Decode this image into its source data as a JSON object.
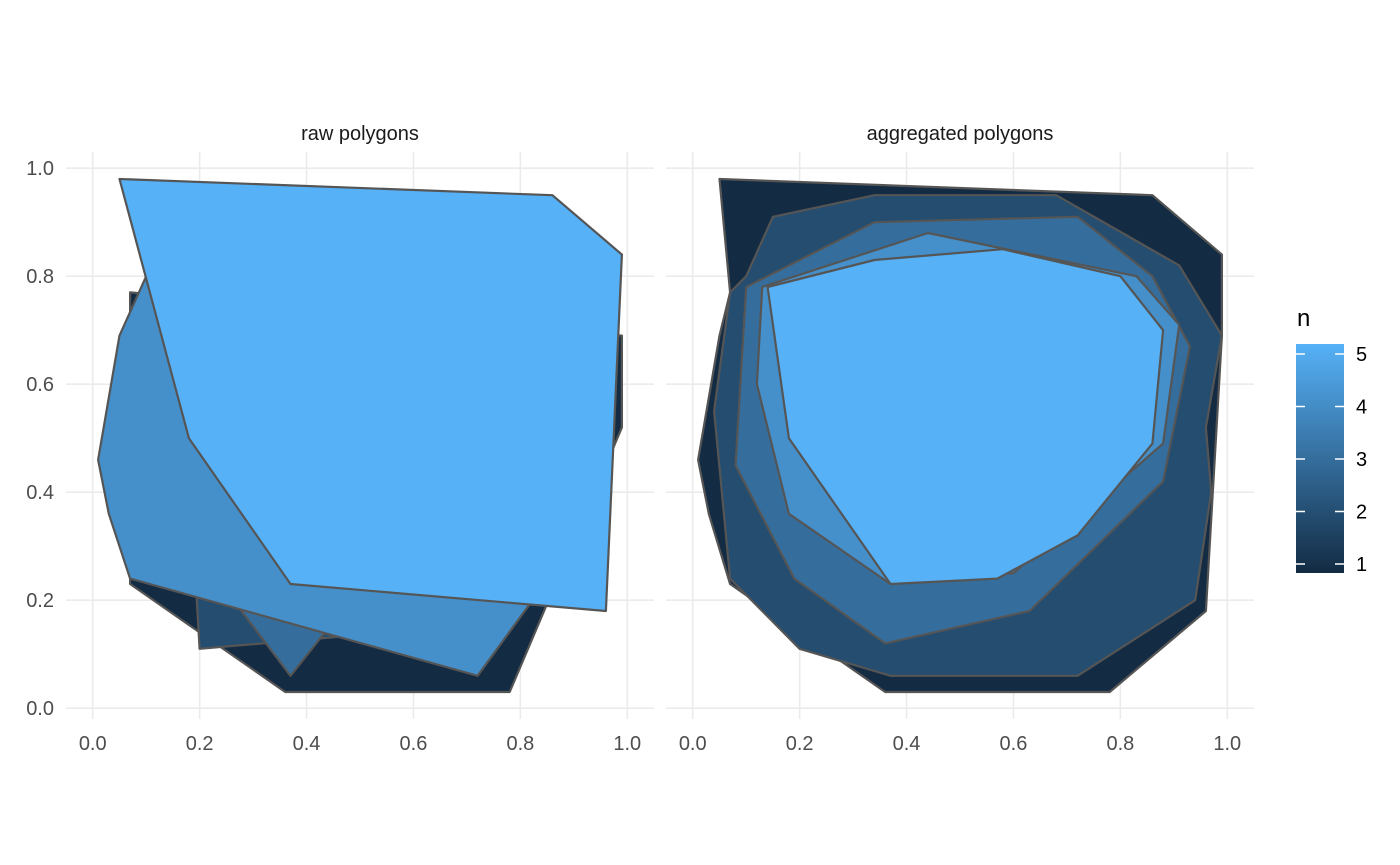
{
  "chart_data": {
    "type": "polygon",
    "fill_scale": {
      "title": "n",
      "ticks": [
        1,
        2,
        3,
        4,
        5
      ],
      "low_color": "#132B43",
      "high_color": "#56B1F7"
    },
    "stroke_color": "#555555",
    "panels": [
      {
        "title": "raw polygons",
        "x_ticks": [
          "0.0",
          "0.2",
          "0.4",
          "0.6",
          "0.8",
          "1.0"
        ],
        "y_ticks": [
          "0.0",
          "0.2",
          "0.4",
          "0.6",
          "0.8",
          "1.0"
        ],
        "xlim": [
          -0.05,
          1.05
        ],
        "ylim": [
          -0.02,
          1.03
        ],
        "polygons": [
          {
            "n": 1,
            "points": [
              [
                0.07,
                0.77
              ],
              [
                0.99,
                0.69
              ],
              [
                0.99,
                0.52
              ],
              [
                0.78,
                0.03
              ],
              [
                0.36,
                0.03
              ],
              [
                0.07,
                0.23
              ]
            ]
          },
          {
            "n": 2,
            "points": [
              [
                0.2,
                0.11
              ],
              [
                0.55,
                0.14
              ],
              [
                0.45,
                0.28
              ],
              [
                0.19,
                0.28
              ]
            ]
          },
          {
            "n": 3,
            "points": [
              [
                0.24,
                0.23
              ],
              [
                0.37,
                0.06
              ],
              [
                0.45,
                0.16
              ],
              [
                0.4,
                0.28
              ]
            ]
          },
          {
            "n": 4,
            "points": [
              [
                0.1,
                0.8
              ],
              [
                0.6,
                0.6
              ],
              [
                0.97,
                0.4
              ],
              [
                0.72,
                0.06
              ],
              [
                0.07,
                0.24
              ],
              [
                0.03,
                0.36
              ],
              [
                0.01,
                0.46
              ],
              [
                0.05,
                0.69
              ]
            ]
          },
          {
            "n": 5,
            "points": [
              [
                0.05,
                0.98
              ],
              [
                0.86,
                0.95
              ],
              [
                0.99,
                0.84
              ],
              [
                0.96,
                0.18
              ],
              [
                0.37,
                0.23
              ],
              [
                0.18,
                0.5
              ]
            ]
          }
        ]
      },
      {
        "title": "aggregated polygons",
        "x_ticks": [
          "0.0",
          "0.2",
          "0.4",
          "0.6",
          "0.8",
          "1.0"
        ],
        "y_ticks": [
          "0.0",
          "0.2",
          "0.4",
          "0.6",
          "0.8",
          "1.0"
        ],
        "xlim": [
          -0.05,
          1.05
        ],
        "ylim": [
          -0.02,
          1.03
        ],
        "polygons": [
          {
            "n": 1,
            "points": [
              [
                0.05,
                0.98
              ],
              [
                0.86,
                0.95
              ],
              [
                0.99,
                0.84
              ],
              [
                0.99,
                0.69
              ],
              [
                0.96,
                0.18
              ],
              [
                0.78,
                0.03
              ],
              [
                0.36,
                0.03
              ],
              [
                0.07,
                0.23
              ],
              [
                0.03,
                0.36
              ],
              [
                0.01,
                0.46
              ],
              [
                0.05,
                0.69
              ],
              [
                0.07,
                0.77
              ]
            ]
          },
          {
            "n": 2,
            "points": [
              [
                0.07,
                0.77
              ],
              [
                0.1,
                0.8
              ],
              [
                0.15,
                0.91
              ],
              [
                0.34,
                0.95
              ],
              [
                0.68,
                0.95
              ],
              [
                0.91,
                0.82
              ],
              [
                0.99,
                0.69
              ],
              [
                0.96,
                0.52
              ],
              [
                0.97,
                0.4
              ],
              [
                0.94,
                0.2
              ],
              [
                0.72,
                0.06
              ],
              [
                0.37,
                0.06
              ],
              [
                0.2,
                0.11
              ],
              [
                0.07,
                0.24
              ],
              [
                0.04,
                0.55
              ]
            ]
          },
          {
            "n": 3,
            "points": [
              [
                0.1,
                0.78
              ],
              [
                0.34,
                0.9
              ],
              [
                0.72,
                0.91
              ],
              [
                0.86,
                0.8
              ],
              [
                0.93,
                0.67
              ],
              [
                0.88,
                0.42
              ],
              [
                0.63,
                0.18
              ],
              [
                0.36,
                0.12
              ],
              [
                0.19,
                0.24
              ],
              [
                0.08,
                0.45
              ]
            ]
          },
          {
            "n": 4,
            "points": [
              [
                0.13,
                0.78
              ],
              [
                0.44,
                0.88
              ],
              [
                0.83,
                0.8
              ],
              [
                0.91,
                0.71
              ],
              [
                0.88,
                0.49
              ],
              [
                0.6,
                0.25
              ],
              [
                0.37,
                0.23
              ],
              [
                0.18,
                0.36
              ],
              [
                0.12,
                0.6
              ]
            ]
          },
          {
            "n": 5,
            "points": [
              [
                0.14,
                0.78
              ],
              [
                0.34,
                0.83
              ],
              [
                0.58,
                0.85
              ],
              [
                0.8,
                0.8
              ],
              [
                0.88,
                0.7
              ],
              [
                0.86,
                0.49
              ],
              [
                0.72,
                0.32
              ],
              [
                0.57,
                0.24
              ],
              [
                0.37,
                0.23
              ],
              [
                0.18,
                0.5
              ]
            ]
          }
        ]
      }
    ]
  }
}
